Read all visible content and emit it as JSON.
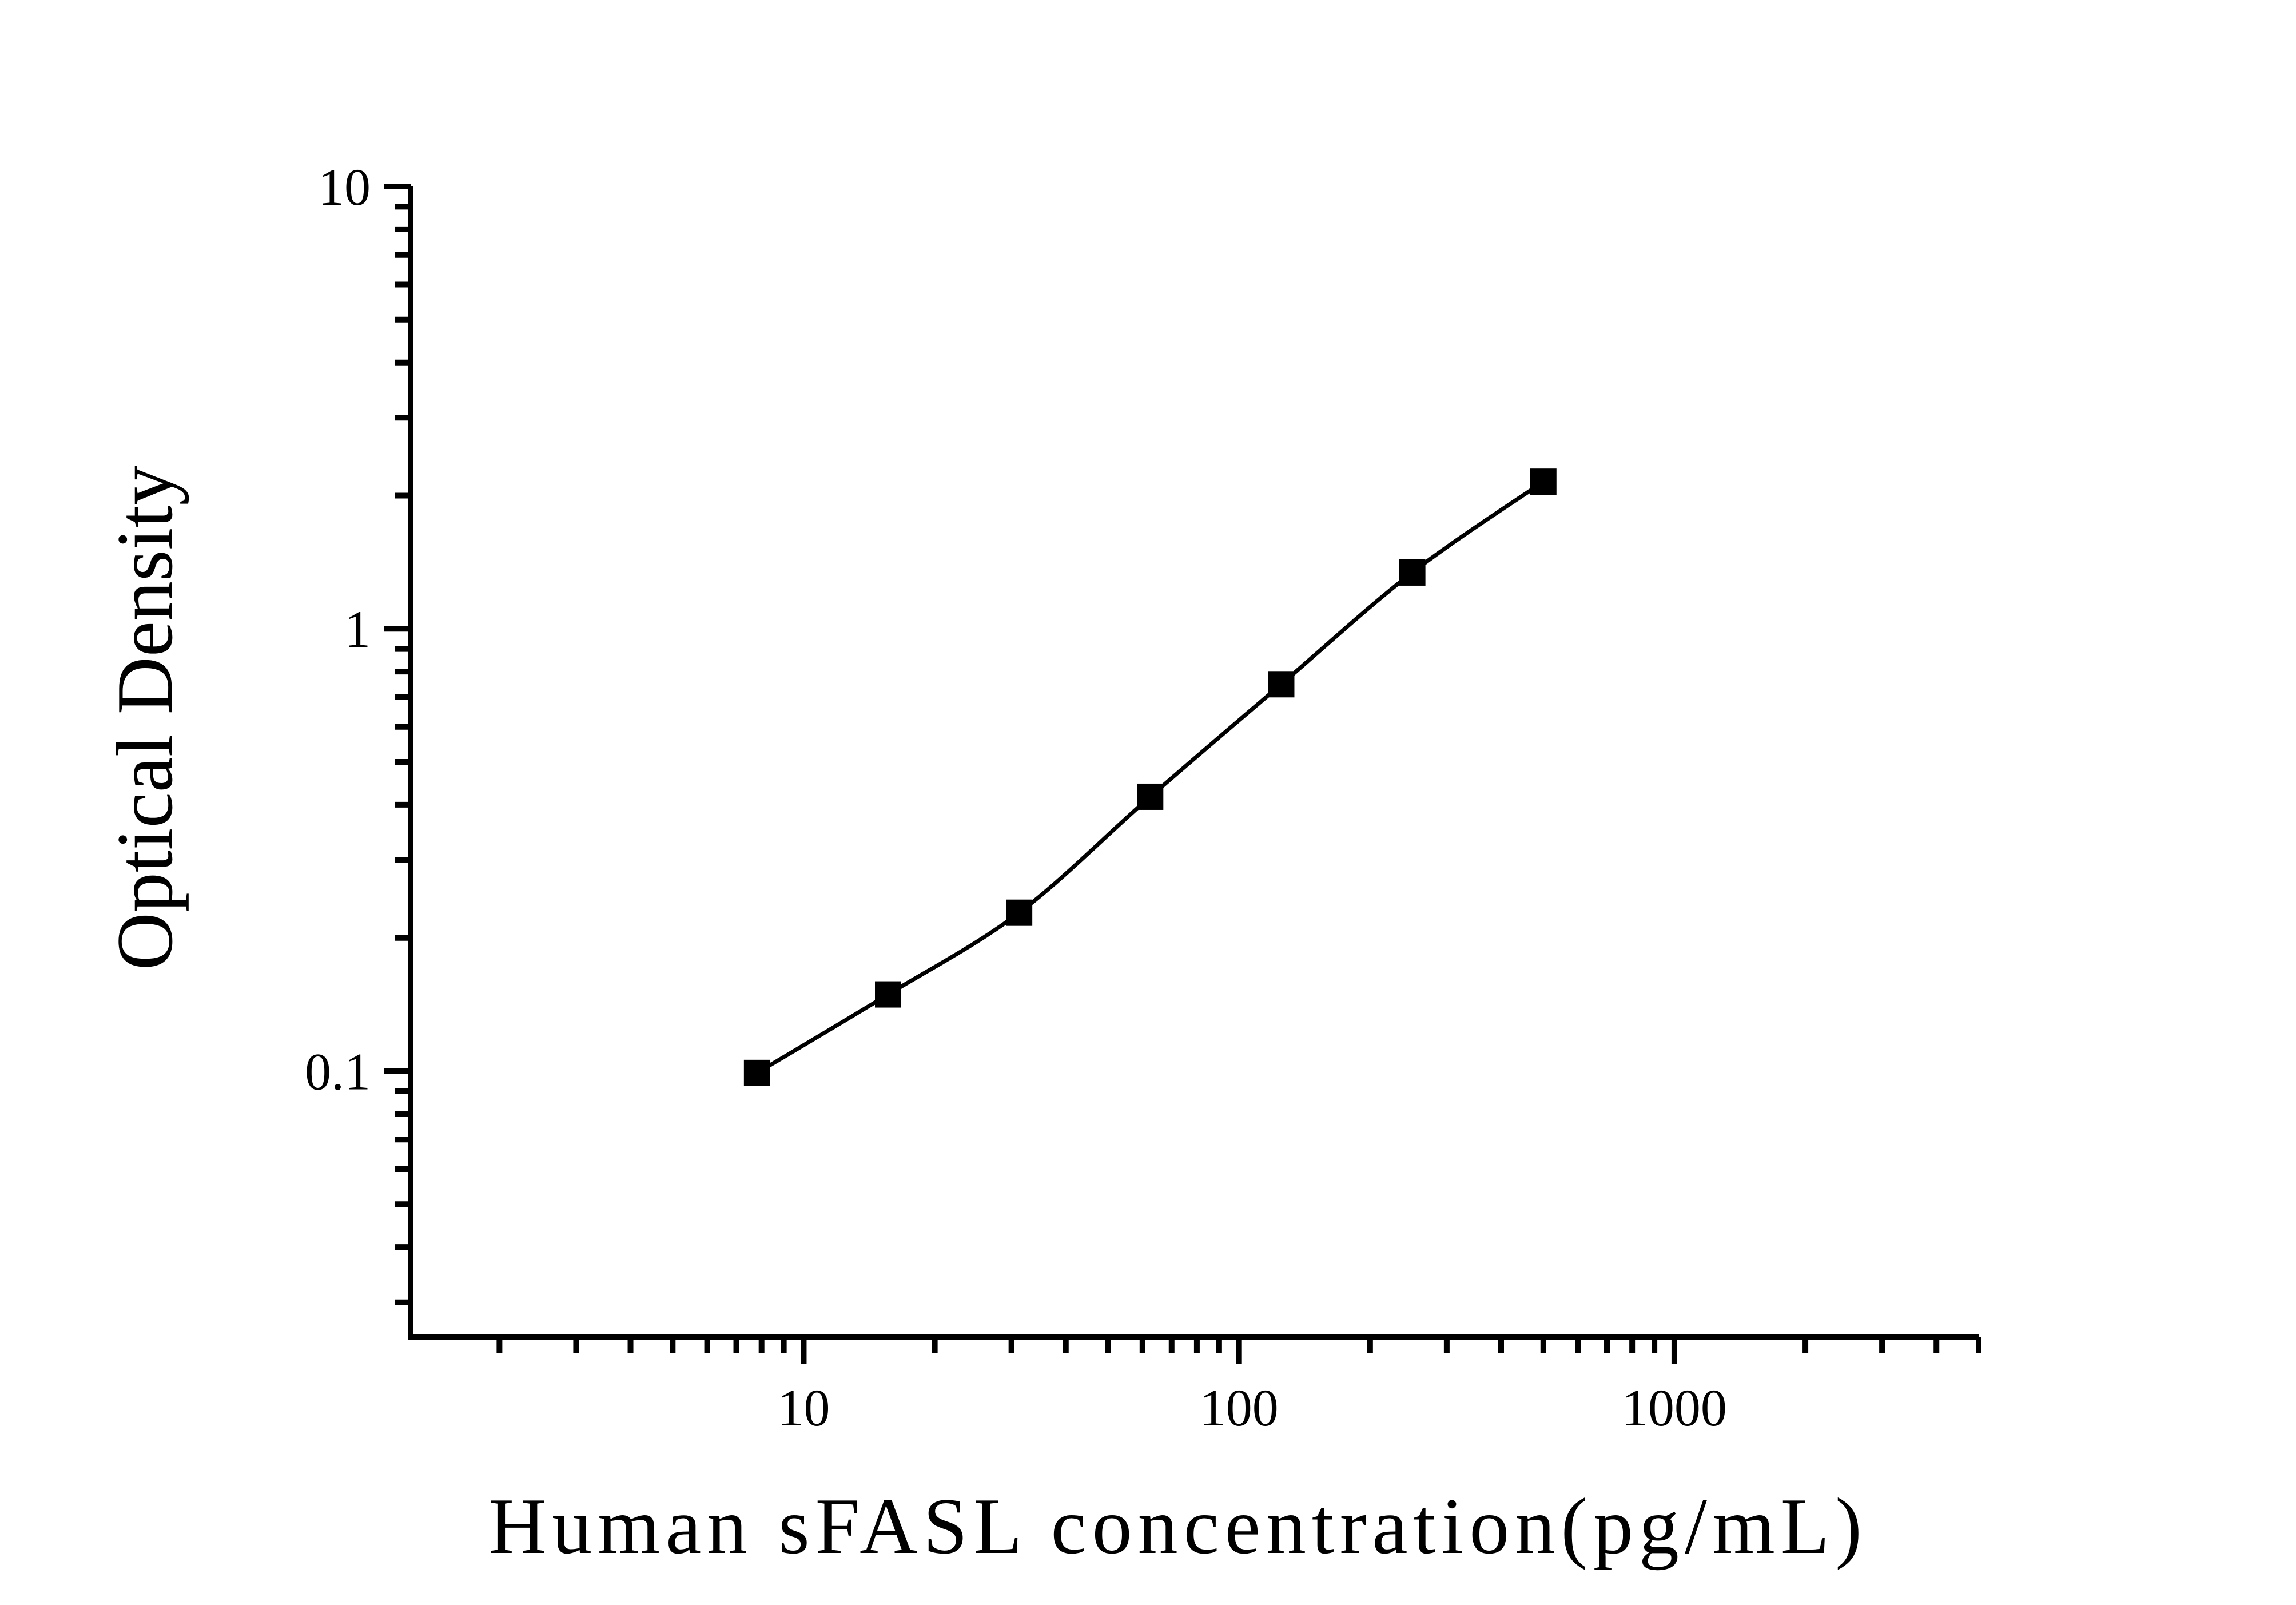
{
  "figure": {
    "background_color": "#ffffff",
    "ink_color": "#000000"
  },
  "chart_data": {
    "type": "scatter",
    "subtype": "elisa-standard-curve",
    "title": "",
    "xlabel": "Human sFASL concentration(pg/mL)",
    "ylabel": "Optical Density",
    "x_scale": "log",
    "y_scale": "log",
    "xlim": [
      1.25,
      5000
    ],
    "ylim": [
      0.025,
      10
    ],
    "grid": false,
    "legend": "none",
    "marker": "filled-square",
    "marker_color": "#000000",
    "line": "smooth",
    "line_color": "#000000",
    "series": [
      {
        "name": "standard curve",
        "x": [
          7.8125,
          15.625,
          31.25,
          62.5,
          125,
          250,
          500
        ],
        "y": [
          0.099,
          0.149,
          0.228,
          0.417,
          0.749,
          1.34,
          2.15
        ]
      }
    ],
    "x_major_ticks": [
      {
        "value": 10,
        "label": "10"
      },
      {
        "value": 100,
        "label": "100"
      },
      {
        "value": 1000,
        "label": "1000"
      }
    ],
    "y_major_ticks": [
      {
        "value": 10,
        "label": "10"
      },
      {
        "value": 1,
        "label": "1"
      },
      {
        "value": 0.1,
        "label": "0.1"
      }
    ],
    "x_minor_ticks": [
      2,
      3,
      4,
      5,
      6,
      7,
      8,
      9,
      20,
      30,
      40,
      50,
      60,
      70,
      80,
      90,
      200,
      300,
      400,
      500,
      600,
      700,
      800,
      900,
      2000,
      3000,
      4000,
      5000
    ],
    "y_minor_ticks": [
      0.03,
      0.04,
      0.05,
      0.06,
      0.07,
      0.08,
      0.09,
      0.2,
      0.3,
      0.4,
      0.5,
      0.6,
      0.7,
      0.8,
      0.9,
      2,
      3,
      4,
      5,
      6,
      7,
      8,
      9
    ]
  }
}
